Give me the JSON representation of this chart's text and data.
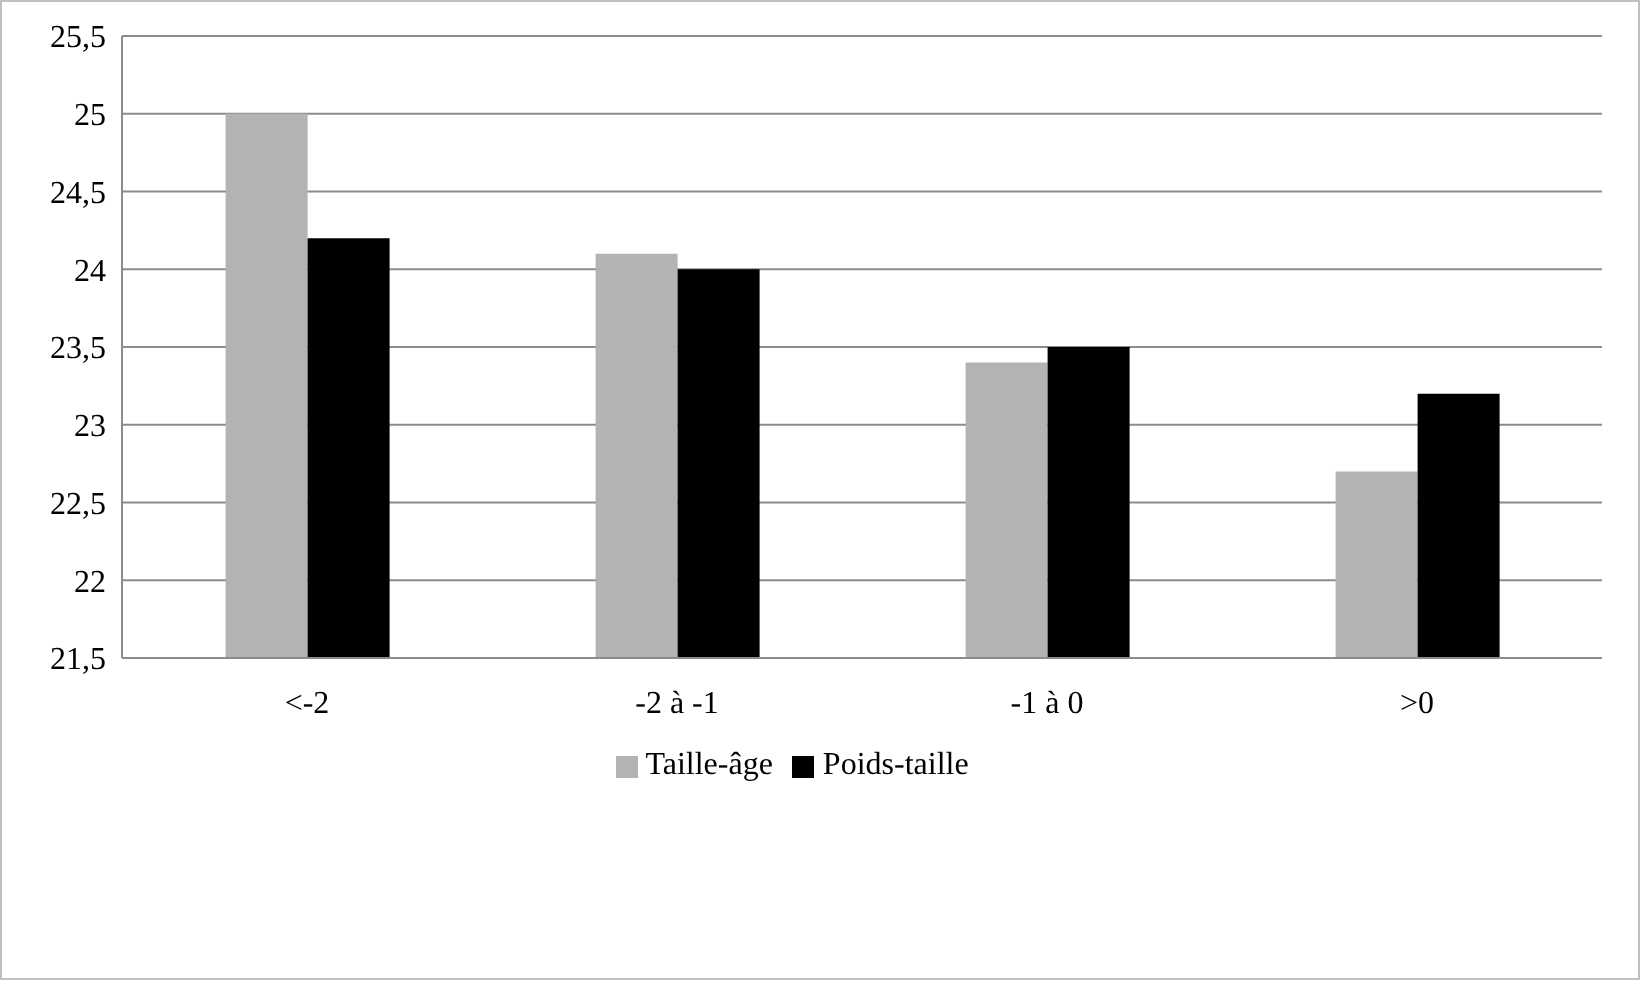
{
  "chart_data": {
    "type": "bar",
    "categories": [
      "<-2",
      "-2 à -1",
      "-1 à 0",
      ">0"
    ],
    "series": [
      {
        "name": "Taille-âge",
        "color": "#b3b3b3",
        "values": [
          25,
          24.1,
          23.4,
          22.7
        ]
      },
      {
        "name": "Poids-taille",
        "color": "#000000",
        "values": [
          24.2,
          24.0,
          23.5,
          23.2
        ]
      }
    ],
    "ylim": [
      21.5,
      25.5
    ],
    "yticks": [
      {
        "value": 21.5,
        "label": "21,5"
      },
      22,
      {
        "value": 22.5,
        "label": "22,5"
      },
      23,
      {
        "value": 23.5,
        "label": "23,5"
      },
      24,
      {
        "value": 24.5,
        "label": "24,5"
      },
      25,
      {
        "value": 25.5,
        "label": "25,5"
      }
    ],
    "grid": "y",
    "legend": "bottom"
  }
}
